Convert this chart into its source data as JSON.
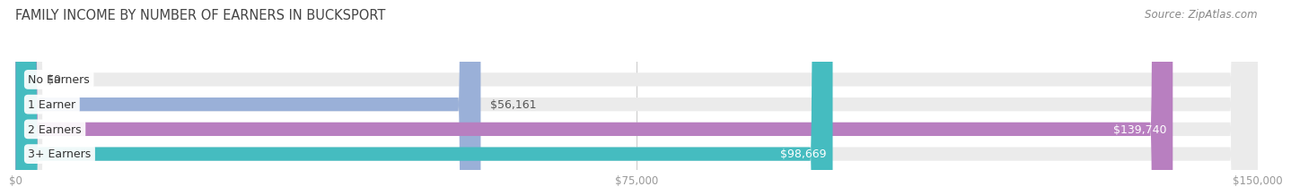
{
  "title": "FAMILY INCOME BY NUMBER OF EARNERS IN BUCKSPORT",
  "source": "Source: ZipAtlas.com",
  "categories": [
    "No Earners",
    "1 Earner",
    "2 Earners",
    "3+ Earners"
  ],
  "values": [
    0,
    56161,
    139740,
    98669
  ],
  "bar_colors": [
    "#f0a0a0",
    "#9ab0d8",
    "#b87fc0",
    "#45bcc0"
  ],
  "label_colors": [
    "#555555",
    "#555555",
    "#ffffff",
    "#ffffff"
  ],
  "value_labels": [
    "$0",
    "$56,161",
    "$139,740",
    "$98,669"
  ],
  "value_inside": [
    false,
    false,
    true,
    true
  ],
  "xlim": [
    0,
    150000
  ],
  "xticks": [
    0,
    75000,
    150000
  ],
  "xticklabels": [
    "$0",
    "$75,000",
    "$150,000"
  ],
  "background_color": "#ffffff",
  "bar_bg_color": "#ebebeb",
  "title_fontsize": 10.5,
  "source_fontsize": 8.5,
  "label_fontsize": 9,
  "value_fontsize": 9,
  "bar_height": 0.55,
  "figsize": [
    14.06,
    2.32
  ]
}
